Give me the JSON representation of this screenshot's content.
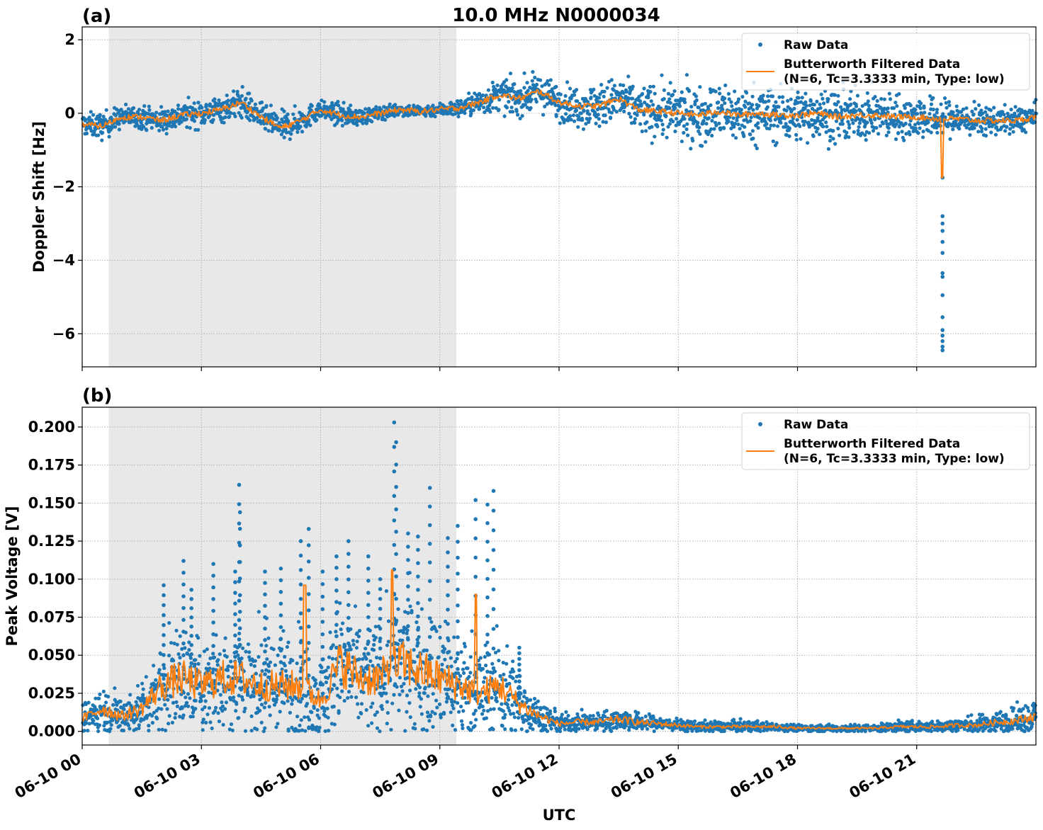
{
  "figure_title": "10.0 MHz N0000034",
  "x_axis_label": "UTC",
  "colors": {
    "raw": "#1f77b4",
    "filtered": "#ff7f0e",
    "shade": "#e8e8e8",
    "grid": "#b0b0b0"
  },
  "chart_data": [
    {
      "type": "scatter",
      "panel_label": "(a)",
      "title": "10.0 MHz N0000034",
      "xlabel": "",
      "ylabel": "Doppler Shift [Hz]",
      "xlim": [
        "06-10 00:00",
        "06-11 00:00"
      ],
      "ylim": [
        -6.9,
        2.35
      ],
      "yticks": [
        2,
        0,
        -2,
        -4,
        -6
      ],
      "ytick_labels": [
        "2",
        "0",
        "−2",
        "−4",
        "−6"
      ],
      "xticks": [
        "06-10 00",
        "06-10 03",
        "06-10 06",
        "06-10 09",
        "06-10 12",
        "06-10 15",
        "06-10 18",
        "06-10 21"
      ],
      "grid": true,
      "legend_position": "top-right",
      "shaded_interval": [
        "06-10 00:40",
        "06-10 09:25"
      ],
      "series": [
        {
          "name": "Raw Data",
          "style": "points",
          "x_hours": [
            0,
            0.5,
            1,
            1.5,
            2,
            2.5,
            3,
            3.5,
            4,
            4.5,
            5,
            5.5,
            6,
            6.5,
            7,
            7.5,
            8,
            8.5,
            9,
            9.5,
            10,
            10.5,
            11,
            11.5,
            12,
            12.5,
            13,
            13.5,
            14,
            14.5,
            15,
            15.5,
            16,
            16.5,
            17,
            17.5,
            18,
            18.5,
            19,
            19.5,
            20,
            20.5,
            21,
            21.5,
            22,
            22.5,
            23,
            23.5,
            24
          ],
          "center": [
            -0.3,
            -0.35,
            -0.1,
            -0.1,
            -0.2,
            -0.05,
            0.0,
            0.1,
            0.3,
            -0.1,
            -0.4,
            -0.2,
            0.1,
            -0.05,
            -0.1,
            0.0,
            0.1,
            0.05,
            0.1,
            0.15,
            0.3,
            0.5,
            0.4,
            0.6,
            0.3,
            0.2,
            0.2,
            0.4,
            0.1,
            0.05,
            0.0,
            -0.05,
            0.05,
            -0.05,
            0.0,
            -0.05,
            -0.05,
            0.0,
            -0.1,
            -0.05,
            -0.05,
            -0.1,
            -0.1,
            -0.15,
            -0.15,
            -0.2,
            -0.2,
            -0.2,
            -0.1
          ],
          "spread": [
            0.25,
            0.3,
            0.25,
            0.25,
            0.3,
            0.3,
            0.3,
            0.3,
            0.35,
            0.3,
            0.35,
            0.3,
            0.2,
            0.25,
            0.2,
            0.15,
            0.15,
            0.15,
            0.15,
            0.2,
            0.3,
            0.35,
            0.4,
            0.4,
            0.4,
            0.45,
            0.5,
            0.5,
            0.55,
            0.6,
            0.65,
            0.65,
            0.65,
            0.65,
            0.65,
            0.65,
            0.6,
            0.6,
            0.6,
            0.55,
            0.55,
            0.5,
            0.5,
            0.45,
            0.4,
            0.35,
            0.3,
            0.3,
            0.3
          ],
          "outliers": [
            {
              "x_hour": 21.65,
              "y": -1.75
            },
            {
              "x_hour": 21.65,
              "y": -2.8
            },
            {
              "x_hour": 21.65,
              "y": -3.0
            },
            {
              "x_hour": 21.65,
              "y": -3.2
            },
            {
              "x_hour": 21.65,
              "y": -3.5
            },
            {
              "x_hour": 21.65,
              "y": -3.8
            },
            {
              "x_hour": 21.65,
              "y": -4.35
            },
            {
              "x_hour": 21.65,
              "y": -4.45
            },
            {
              "x_hour": 21.65,
              "y": -4.95
            },
            {
              "x_hour": 21.65,
              "y": -5.55
            },
            {
              "x_hour": 21.65,
              "y": -5.9
            },
            {
              "x_hour": 21.65,
              "y": -6.05
            },
            {
              "x_hour": 21.65,
              "y": -6.2
            },
            {
              "x_hour": 21.65,
              "y": -6.35
            },
            {
              "x_hour": 21.65,
              "y": -6.45
            }
          ]
        },
        {
          "name": "Butterworth Filtered Data\n(N=6, Tc=3.3333 min, Type: low)",
          "style": "line",
          "x_hours": [
            0,
            0.5,
            1,
            1.5,
            2,
            2.5,
            3,
            3.5,
            4,
            4.5,
            5,
            5.5,
            6,
            6.5,
            7,
            7.5,
            8,
            8.5,
            9,
            9.5,
            10,
            10.5,
            11,
            11.5,
            12,
            12.5,
            13,
            13.5,
            14,
            14.5,
            15,
            15.5,
            16,
            16.5,
            17,
            17.5,
            18,
            18.5,
            19,
            19.5,
            20,
            20.5,
            21,
            21.5,
            22,
            22.5,
            23,
            23.5,
            24
          ],
          "values": [
            -0.3,
            -0.35,
            -0.1,
            -0.1,
            -0.2,
            -0.05,
            0.0,
            0.1,
            0.3,
            -0.1,
            -0.4,
            -0.2,
            0.1,
            -0.05,
            -0.1,
            0.0,
            0.1,
            0.05,
            0.1,
            0.15,
            0.3,
            0.5,
            0.4,
            0.6,
            0.3,
            0.2,
            0.2,
            0.4,
            0.1,
            0.05,
            0.0,
            -0.05,
            0.05,
            -0.05,
            0.0,
            -0.05,
            -0.05,
            0.0,
            -0.1,
            -0.05,
            -0.05,
            -0.1,
            -0.1,
            -0.15,
            -0.15,
            -0.2,
            -0.2,
            -0.2,
            -0.1
          ],
          "spike": {
            "x_hour": 21.65,
            "y": -1.75
          }
        }
      ]
    },
    {
      "type": "scatter",
      "panel_label": "(b)",
      "title": "",
      "xlabel": "UTC",
      "ylabel": "Peak Voltage [V]",
      "xlim": [
        "06-10 00:00",
        "06-11 00:00"
      ],
      "ylim": [
        -0.009,
        0.213
      ],
      "yticks": [
        0.2,
        0.175,
        0.15,
        0.125,
        0.1,
        0.075,
        0.05,
        0.025,
        0.0
      ],
      "ytick_labels": [
        "0.200",
        "0.175",
        "0.150",
        "0.125",
        "0.100",
        "0.075",
        "0.050",
        "0.025",
        "0.000"
      ],
      "xticks": [
        "06-10 00",
        "06-10 03",
        "06-10 06",
        "06-10 09",
        "06-10 12",
        "06-10 15",
        "06-10 18",
        "06-10 21"
      ],
      "grid": true,
      "legend_position": "top-right",
      "shaded_interval": [
        "06-10 00:40",
        "06-10 09:25"
      ],
      "series": [
        {
          "name": "Raw Data",
          "style": "points",
          "x_hours": [
            0,
            0.5,
            1,
            1.5,
            2,
            2.5,
            3,
            3.5,
            4,
            4.5,
            5,
            5.5,
            6,
            6.5,
            7,
            7.5,
            8,
            8.5,
            9,
            9.5,
            10,
            10.5,
            11,
            11.5,
            12,
            12.5,
            13,
            13.5,
            14,
            14.5,
            15,
            15.5,
            16,
            16.5,
            17,
            17.5,
            18,
            18.5,
            19,
            19.5,
            20,
            20.5,
            21,
            21.5,
            22,
            22.5,
            23,
            23.5,
            24
          ],
          "center": [
            0.008,
            0.015,
            0.01,
            0.015,
            0.03,
            0.035,
            0.03,
            0.035,
            0.035,
            0.03,
            0.03,
            0.03,
            0.02,
            0.045,
            0.035,
            0.035,
            0.045,
            0.04,
            0.035,
            0.03,
            0.025,
            0.03,
            0.018,
            0.01,
            0.005,
            0.006,
            0.006,
            0.008,
            0.006,
            0.005,
            0.004,
            0.003,
            0.003,
            0.003,
            0.003,
            0.003,
            0.002,
            0.002,
            0.002,
            0.002,
            0.002,
            0.003,
            0.003,
            0.003,
            0.004,
            0.004,
            0.006,
            0.007,
            0.01
          ],
          "spread": [
            0.008,
            0.012,
            0.01,
            0.015,
            0.025,
            0.03,
            0.025,
            0.03,
            0.03,
            0.03,
            0.03,
            0.03,
            0.025,
            0.035,
            0.03,
            0.03,
            0.04,
            0.035,
            0.035,
            0.03,
            0.03,
            0.03,
            0.02,
            0.008,
            0.005,
            0.005,
            0.005,
            0.006,
            0.005,
            0.004,
            0.003,
            0.003,
            0.003,
            0.003,
            0.003,
            0.002,
            0.002,
            0.002,
            0.002,
            0.002,
            0.002,
            0.003,
            0.003,
            0.003,
            0.004,
            0.005,
            0.006,
            0.007,
            0.009
          ],
          "peaks": [
            {
              "x_hour": 2.05,
              "y": 0.096
            },
            {
              "x_hour": 2.55,
              "y": 0.112
            },
            {
              "x_hour": 2.75,
              "y": 0.093
            },
            {
              "x_hour": 3.3,
              "y": 0.11
            },
            {
              "x_hour": 3.85,
              "y": 0.105
            },
            {
              "x_hour": 3.95,
              "y": 0.162
            },
            {
              "x_hour": 3.97,
              "y": 0.144
            },
            {
              "x_hour": 4.6,
              "y": 0.105
            },
            {
              "x_hour": 5.0,
              "y": 0.107
            },
            {
              "x_hour": 5.5,
              "y": 0.125
            },
            {
              "x_hour": 5.7,
              "y": 0.133
            },
            {
              "x_hour": 6.05,
              "y": 0.105
            },
            {
              "x_hour": 6.4,
              "y": 0.115
            },
            {
              "x_hour": 6.7,
              "y": 0.125
            },
            {
              "x_hour": 7.2,
              "y": 0.115
            },
            {
              "x_hour": 7.5,
              "y": 0.1
            },
            {
              "x_hour": 7.85,
              "y": 0.203
            },
            {
              "x_hour": 7.9,
              "y": 0.19
            },
            {
              "x_hour": 8.2,
              "y": 0.13
            },
            {
              "x_hour": 8.45,
              "y": 0.128
            },
            {
              "x_hour": 8.75,
              "y": 0.16
            },
            {
              "x_hour": 9.2,
              "y": 0.127
            },
            {
              "x_hour": 9.45,
              "y": 0.135
            },
            {
              "x_hour": 9.9,
              "y": 0.152
            },
            {
              "x_hour": 10.2,
              "y": 0.149
            },
            {
              "x_hour": 10.35,
              "y": 0.158
            },
            {
              "x_hour": 11.0,
              "y": 0.055
            }
          ]
        },
        {
          "name": "Butterworth Filtered Data\n(N=6, Tc=3.3333 min, Type: low)",
          "style": "line",
          "x_hours": [
            0,
            0.5,
            1,
            1.5,
            2,
            2.5,
            3,
            3.5,
            4,
            4.5,
            5,
            5.5,
            6,
            6.5,
            7,
            7.5,
            8,
            8.5,
            9,
            9.5,
            10,
            10.5,
            11,
            11.5,
            12,
            12.5,
            13,
            13.5,
            14,
            14.5,
            15,
            15.5,
            16,
            16.5,
            17,
            17.5,
            18,
            18.5,
            19,
            19.5,
            20,
            20.5,
            21,
            21.5,
            22,
            22.5,
            23,
            23.5,
            24
          ],
          "values": [
            0.008,
            0.015,
            0.01,
            0.015,
            0.03,
            0.035,
            0.03,
            0.035,
            0.035,
            0.03,
            0.03,
            0.03,
            0.02,
            0.045,
            0.035,
            0.035,
            0.045,
            0.04,
            0.035,
            0.03,
            0.025,
            0.03,
            0.018,
            0.01,
            0.005,
            0.006,
            0.006,
            0.008,
            0.006,
            0.005,
            0.004,
            0.003,
            0.003,
            0.003,
            0.003,
            0.003,
            0.002,
            0.002,
            0.002,
            0.002,
            0.002,
            0.003,
            0.003,
            0.003,
            0.004,
            0.004,
            0.006,
            0.007,
            0.01
          ],
          "peaks": [
            {
              "x_hour": 5.6,
              "y": 0.096
            },
            {
              "x_hour": 7.8,
              "y": 0.106
            },
            {
              "x_hour": 9.9,
              "y": 0.09
            }
          ]
        }
      ]
    }
  ]
}
